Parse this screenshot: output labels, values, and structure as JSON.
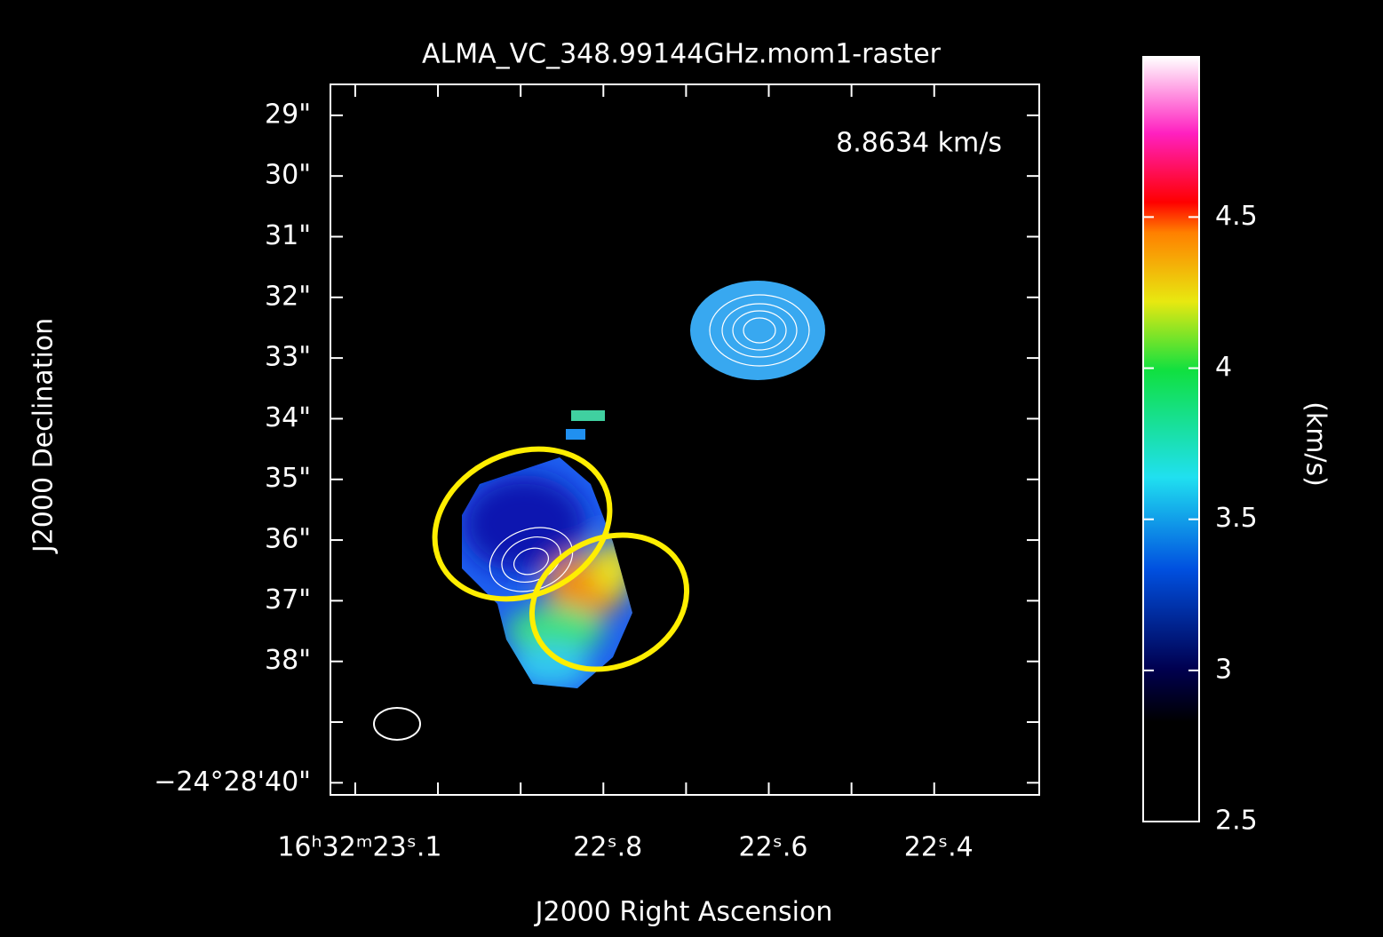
{
  "chart_data": {
    "type": "image",
    "title": "ALMA_VC_348.99144GHz.mom1-raster",
    "annotation": "8.8634 km/s",
    "xlabel": "J2000 Right Ascension",
    "ylabel": "J2000 Declination",
    "colorbar_label": "(km/s)",
    "xlim": [
      23.13,
      22.273
    ],
    "xticks": [
      {
        "value": 23.1,
        "label": "16ʰ32ᵐ23ˢ.1"
      },
      {
        "value": 22.8,
        "label": "22ˢ.8"
      },
      {
        "value": 22.6,
        "label": "22ˢ.6"
      },
      {
        "value": 22.4,
        "label": "22ˢ.4"
      }
    ],
    "xminor": [
      23.0,
      22.9,
      22.7,
      22.5
    ],
    "ylim": [
      40.2,
      28.49
    ],
    "yticks": [
      {
        "value": 29,
        "label": "29\""
      },
      {
        "value": 30,
        "label": "30\""
      },
      {
        "value": 31,
        "label": "31\""
      },
      {
        "value": 32,
        "label": "32\""
      },
      {
        "value": 33,
        "label": "33\""
      },
      {
        "value": 34,
        "label": "34\""
      },
      {
        "value": 35,
        "label": "35\""
      },
      {
        "value": 36,
        "label": "36\""
      },
      {
        "value": 37,
        "label": "37\""
      },
      {
        "value": 38,
        "label": "38\""
      },
      {
        "value": 40,
        "label": "−24°28'40\""
      }
    ],
    "yminor": [
      39
    ],
    "clim": [
      2.5,
      5.03
    ],
    "cticks": [
      2.5,
      3,
      3.5,
      4,
      4.5
    ]
  }
}
